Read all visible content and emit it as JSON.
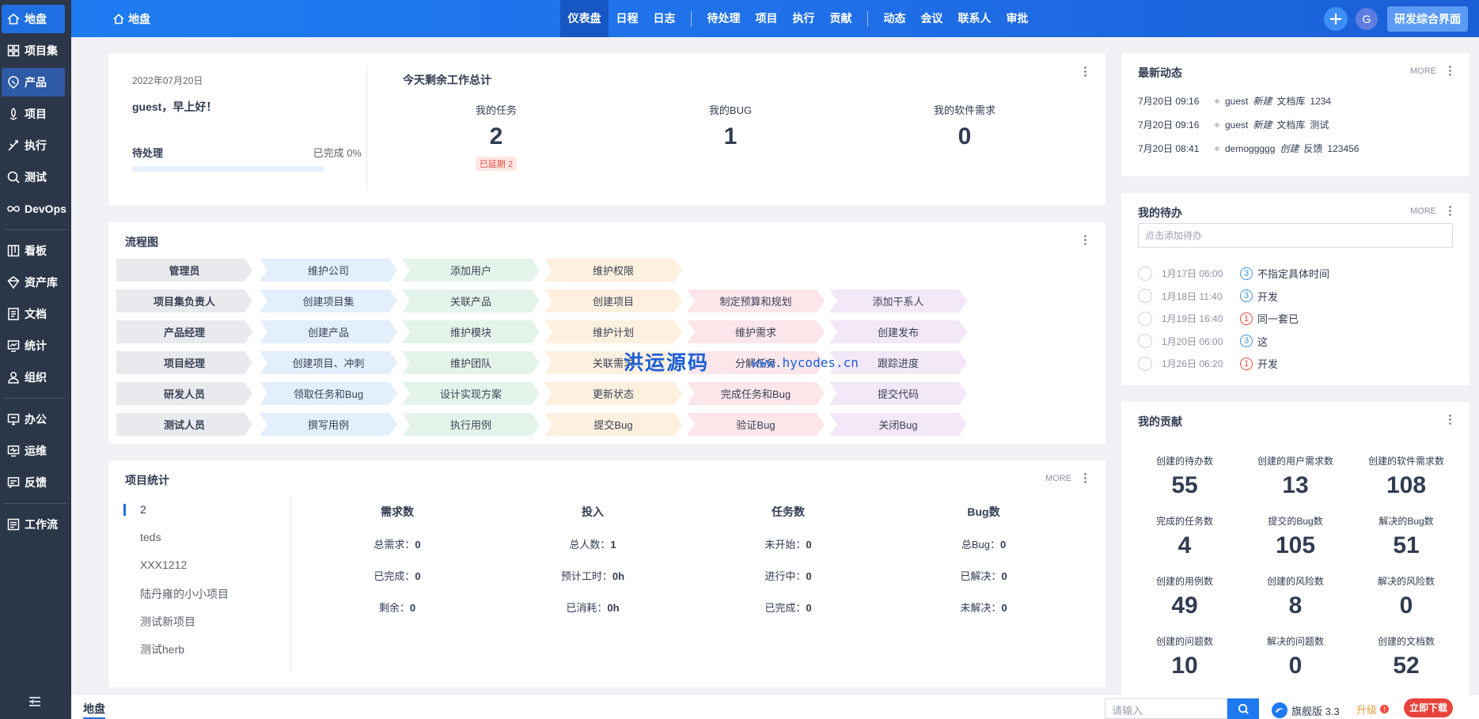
{
  "sidebar": {
    "items": [
      {
        "label": "地盘",
        "icon": "home-icon"
      },
      {
        "label": "项目集",
        "icon": "grid-icon"
      },
      {
        "label": "产品",
        "icon": "product-icon"
      },
      {
        "label": "项目",
        "icon": "project-icon"
      },
      {
        "label": "执行",
        "icon": "execution-icon"
      },
      {
        "label": "测试",
        "icon": "test-icon"
      },
      {
        "label": "DevOps",
        "icon": "infinity-icon"
      },
      {
        "label": "看板",
        "icon": "kanban-icon"
      },
      {
        "label": "资产库",
        "icon": "asset-icon"
      },
      {
        "label": "文档",
        "icon": "doc-icon"
      },
      {
        "label": "统计",
        "icon": "stats-icon"
      },
      {
        "label": "组织",
        "icon": "org-icon"
      },
      {
        "label": "办公",
        "icon": "office-icon"
      },
      {
        "label": "运维",
        "icon": "ops-icon"
      },
      {
        "label": "反馈",
        "icon": "feedback-icon"
      },
      {
        "label": "工作流",
        "icon": "workflow-icon"
      }
    ]
  },
  "header": {
    "crumb": "地盘",
    "nav": [
      "仪表盘",
      "日程",
      "日志",
      "待处理",
      "项目",
      "执行",
      "贡献",
      "动态",
      "会议",
      "联系人",
      "审批"
    ],
    "active_nav": "仪表盘",
    "avatar_letter": "G",
    "switch_label": "研发综合界面"
  },
  "welcome": {
    "date": "2022年07月20日",
    "greeting": "guest，早上好！",
    "pending_label": "待处理",
    "done_label": "已完成 0%",
    "progress": 0,
    "title": "今天剩余工作总计",
    "stats": [
      {
        "label": "我的任务",
        "value": "2",
        "badge": "已延期 2"
      },
      {
        "label": "我的BUG",
        "value": "1"
      },
      {
        "label": "我的软件需求",
        "value": "0"
      }
    ]
  },
  "flow": {
    "title": "流程图",
    "rows": [
      {
        "role": "管理员",
        "steps": [
          "维护公司",
          "添加用户",
          "维护权限"
        ]
      },
      {
        "role": "项目集负责人",
        "steps": [
          "创建项目集",
          "关联产品",
          "创建项目",
          "制定预算和规划",
          "添加干系人"
        ]
      },
      {
        "role": "产品经理",
        "steps": [
          "创建产品",
          "维护模块",
          "维护计划",
          "维护需求",
          "创建发布"
        ]
      },
      {
        "role": "项目经理",
        "steps": [
          "创建项目、冲刺",
          "维护团队",
          "关联需求",
          "分解任务",
          "跟踪进度"
        ]
      },
      {
        "role": "研发人员",
        "steps": [
          "领取任务和Bug",
          "设计实现方案",
          "更新状态",
          "完成任务和Bug",
          "提交代码"
        ]
      },
      {
        "role": "测试人员",
        "steps": [
          "撰写用例",
          "执行用例",
          "提交Bug",
          "验证Bug",
          "关闭Bug"
        ]
      }
    ],
    "watermark": "洪运源码",
    "watermark_url": "www.hycodes.cn"
  },
  "project_stats": {
    "title": "项目统计",
    "more": "MORE",
    "projects": [
      "2",
      "teds",
      "XXX1212",
      "陆丹雍的小小项目",
      "测试新项目",
      "测试herb"
    ],
    "columns": [
      {
        "header": "需求数",
        "rows": [
          {
            "k": "总需求：",
            "v": "0"
          },
          {
            "k": "已完成：",
            "v": "0"
          },
          {
            "k": "剩余：",
            "v": "0"
          }
        ]
      },
      {
        "header": "投入",
        "rows": [
          {
            "k": "总人数：",
            "v": "1"
          },
          {
            "k": "预计工时：",
            "v": "0h"
          },
          {
            "k": "已消耗：",
            "v": "0h"
          }
        ]
      },
      {
        "header": "任务数",
        "rows": [
          {
            "k": "未开始：",
            "v": "0"
          },
          {
            "k": "进行中：",
            "v": "0"
          },
          {
            "k": "已完成：",
            "v": "0"
          }
        ]
      },
      {
        "header": "Bug数",
        "rows": [
          {
            "k": "总Bug：",
            "v": "0"
          },
          {
            "k": "已解决：",
            "v": "0"
          },
          {
            "k": "未解决：",
            "v": "0"
          }
        ]
      }
    ]
  },
  "activity": {
    "title": "最新动态",
    "more": "MORE",
    "items": [
      {
        "time": "7月20日 09:16",
        "user": "guest",
        "action": "新建",
        "object": "文档库",
        "name": "1234"
      },
      {
        "time": "7月20日 09:16",
        "user": "guest",
        "action": "新建",
        "object": "文档库",
        "name": "测试"
      },
      {
        "time": "7月20日 08:41",
        "user": "demoggggg",
        "action": "创建",
        "object": "反馈",
        "name": "123456"
      }
    ]
  },
  "todo": {
    "title": "我的待办",
    "more": "MORE",
    "placeholder": "点击添加待办",
    "items": [
      {
        "time": "1月17日 06:00",
        "pri": "3",
        "name": "不指定具体时间"
      },
      {
        "time": "1月18日 11:40",
        "pri": "3",
        "name": "开发"
      },
      {
        "time": "1月19日 16:40",
        "pri": "1",
        "name": "同一套已"
      },
      {
        "time": "1月20日 06:00",
        "pri": "3",
        "name": "这"
      },
      {
        "time": "1月26日 06:20",
        "pri": "1",
        "name": "开发"
      }
    ]
  },
  "contrib": {
    "title": "我的贡献",
    "cells": [
      {
        "label": "创建的待办数",
        "value": "55"
      },
      {
        "label": "创建的用户需求数",
        "value": "13"
      },
      {
        "label": "创建的软件需求数",
        "value": "108"
      },
      {
        "label": "完成的任务数",
        "value": "4"
      },
      {
        "label": "提交的Bug数",
        "value": "105"
      },
      {
        "label": "解决的Bug数",
        "value": "51"
      },
      {
        "label": "创建的用例数",
        "value": "49"
      },
      {
        "label": "创建的风险数",
        "value": "8"
      },
      {
        "label": "解决的风险数",
        "value": "0"
      },
      {
        "label": "创建的问题数",
        "value": "10"
      },
      {
        "label": "解决的问题数",
        "value": "0"
      },
      {
        "label": "创建的文档数",
        "value": "52"
      }
    ]
  },
  "bottom": {
    "crumb": "地盘",
    "search_placeholder": "请输入",
    "version": "旗舰版 3.3",
    "upgrade": "升级",
    "download": "立即下载"
  },
  "colors": {
    "accent": "#1f6fe0",
    "sidebar": "#2b3648",
    "danger": "#ee4c3e"
  }
}
